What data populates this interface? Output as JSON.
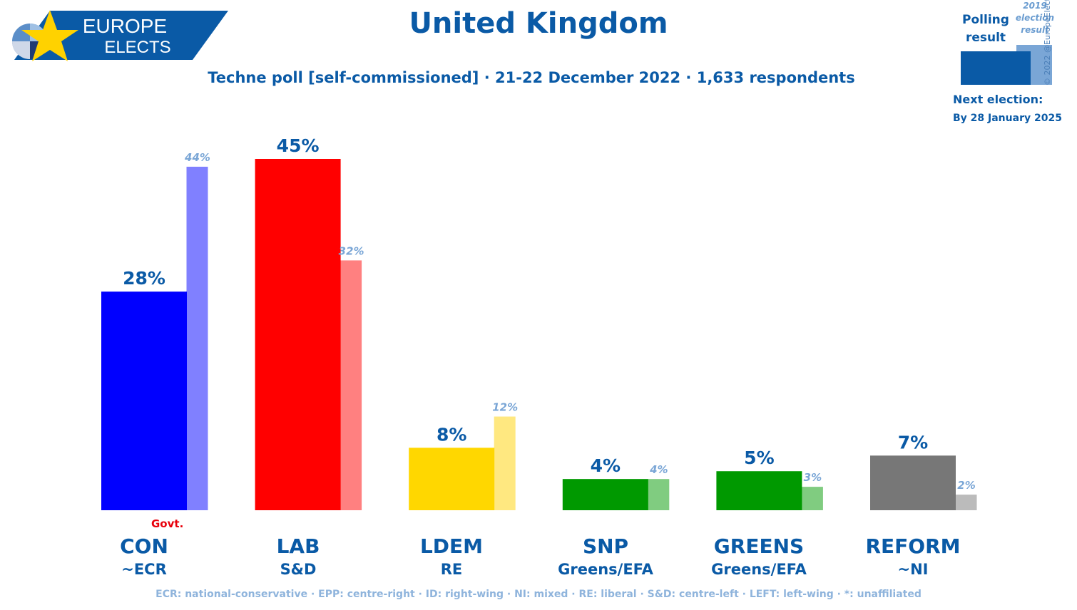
{
  "branding": {
    "line1": "EUROPE",
    "line2": "ELECTS",
    "copyright": "© 2022 @EuropeElects"
  },
  "header": {
    "title": "United Kingdom",
    "subtitle": "Techne poll [self-commissioned] · 21-22 December 2022 · 1,633 respondents"
  },
  "legend": {
    "polling_label": [
      "Polling",
      "result"
    ],
    "previous_label": [
      "2019",
      "election",
      "result"
    ],
    "next_election_label": "Next election:",
    "next_election_date": "By 28 January 2025"
  },
  "govt_label": "Govt.",
  "footer": "ECR: national-conservative · EPP: centre-right · ID: right-wing · NI: mixed · RE: liberal · S&D: centre-left · LEFT: left-wing · *: unaffiliated",
  "colors": {
    "accent": "#0a5aa6",
    "previous_label": "#7aa6d6"
  },
  "chart_data": {
    "type": "bar",
    "title": "United Kingdom",
    "categories": [
      "CON",
      "LAB",
      "LDEM",
      "SNP",
      "GREENS",
      "REFORM"
    ],
    "groups": [
      "~ECR",
      "S&D",
      "RE",
      "Greens/EFA",
      "Greens/EFA",
      "~NI"
    ],
    "series": [
      {
        "name": "Polling result",
        "values": [
          28,
          45,
          8,
          4,
          5,
          7
        ],
        "labels": [
          "28%",
          "45%",
          "8%",
          "4%",
          "5%",
          "7%"
        ],
        "colors": [
          "#0000ff",
          "#ff0000",
          "#ffd700",
          "#009900",
          "#009900",
          "#777777"
        ]
      },
      {
        "name": "2019 election result",
        "values": [
          44,
          32,
          12,
          4,
          3,
          2
        ],
        "labels": [
          "44%",
          "32%",
          "12%",
          "4%",
          "3%",
          "2%"
        ],
        "colors": [
          "#8080ff",
          "#ff8080",
          "#ffe880",
          "#80cc80",
          "#80cc80",
          "#bbbbbb"
        ]
      }
    ],
    "ylim": [
      0,
      45
    ],
    "grid": false
  }
}
